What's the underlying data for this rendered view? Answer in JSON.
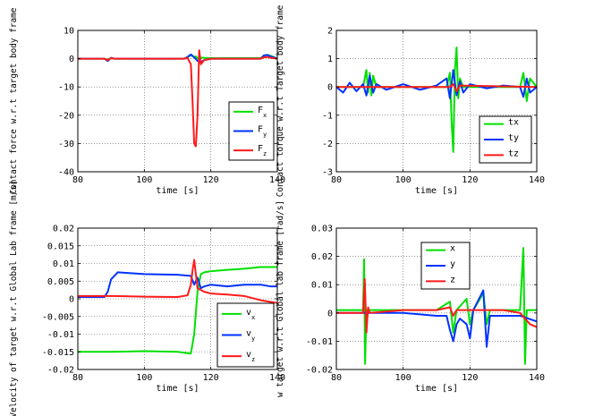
{
  "chart_data": [
    {
      "type": "line",
      "id": "force",
      "title": "",
      "xlabel": "time [s]",
      "ylabel": "Contact force w.r.t target body frame",
      "xlim": [
        80,
        140
      ],
      "ylim": [
        -40,
        10
      ],
      "xticks": [
        80,
        100,
        120,
        140
      ],
      "yticks": [
        -40,
        -30,
        -20,
        -10,
        0,
        10
      ],
      "grid": true,
      "legend_position": "lower-right",
      "series": [
        {
          "name": "F",
          "sub": "x",
          "color": "#00e000",
          "x": [
            80,
            88,
            89,
            90,
            91,
            112,
            113,
            114,
            115,
            115.5,
            116,
            116.5,
            117,
            118,
            120,
            135,
            136,
            137,
            138,
            140
          ],
          "y": [
            0,
            0,
            -0.3,
            0.2,
            0,
            0,
            0.5,
            1.2,
            0.6,
            0.8,
            0.2,
            -0.3,
            0.4,
            0.3,
            0.2,
            0.2,
            1.0,
            1.4,
            1.0,
            0.1
          ]
        },
        {
          "name": "F",
          "sub": "y",
          "color": "#0033ff",
          "x": [
            80,
            88,
            89,
            90,
            91,
            112,
            113,
            114,
            115,
            116,
            117,
            118,
            120,
            135,
            136,
            137,
            138,
            140
          ],
          "y": [
            0,
            0,
            -0.8,
            0.3,
            0,
            0,
            0.6,
            1.5,
            0.5,
            -0.8,
            -1.2,
            -0.5,
            0,
            0,
            1.2,
            1.3,
            0.8,
            0
          ]
        },
        {
          "name": "F",
          "sub": "z",
          "color": "#ff1a1a",
          "x": [
            80,
            88,
            89,
            90,
            91,
            112,
            113,
            114,
            114.5,
            115,
            115.5,
            116,
            116.5,
            117,
            118,
            120,
            135,
            136,
            137,
            138,
            140
          ],
          "y": [
            0,
            0,
            -0.5,
            0.2,
            0,
            0,
            0.3,
            -2,
            -15,
            -30,
            -31,
            -20,
            3,
            -2,
            -0.5,
            0,
            0,
            0.5,
            0.6,
            0.3,
            0
          ]
        }
      ]
    },
    {
      "type": "line",
      "id": "torque",
      "title": "",
      "xlabel": "time [s]",
      "ylabel": "Contact torque w.r.t Target body frame",
      "xlim": [
        80,
        140
      ],
      "ylim": [
        -3,
        2
      ],
      "xticks": [
        80,
        100,
        120,
        140
      ],
      "yticks": [
        -3,
        -2,
        -1,
        0,
        1,
        2
      ],
      "grid": true,
      "legend_position": "lower-right",
      "series": [
        {
          "name": "tx",
          "sub": "",
          "color": "#00e000",
          "x": [
            80,
            88,
            89,
            89.5,
            90,
            90.5,
            91,
            92,
            113,
            114,
            114.5,
            115,
            115.5,
            116,
            116.5,
            117,
            118,
            120,
            135,
            136,
            137,
            138,
            140
          ],
          "y": [
            0,
            0,
            0.6,
            -0.2,
            0.5,
            -0.3,
            0.4,
            0,
            0,
            0.5,
            -1.2,
            -2.3,
            0.6,
            1.4,
            -0.4,
            0.3,
            0,
            0,
            0,
            0.5,
            -0.5,
            0.3,
            0
          ]
        },
        {
          "name": "ty",
          "sub": "",
          "color": "#0033ff",
          "x": [
            80,
            82,
            84,
            86,
            88,
            89,
            90,
            91,
            92,
            95,
            100,
            105,
            110,
            113,
            114,
            115,
            116,
            117,
            118,
            120,
            125,
            130,
            135,
            136,
            137,
            138,
            140
          ],
          "y": [
            0,
            -0.2,
            0.15,
            -0.15,
            0.1,
            -0.3,
            0.4,
            -0.2,
            0.1,
            -0.1,
            0.1,
            -0.1,
            0.05,
            0.3,
            -0.4,
            0.6,
            -0.3,
            0.2,
            -0.2,
            0.1,
            -0.05,
            0.05,
            0,
            -0.35,
            0.3,
            -0.2,
            0
          ]
        },
        {
          "name": "tz",
          "sub": "",
          "color": "#ff1a1a",
          "x": [
            80,
            114,
            115,
            116,
            117,
            140
          ],
          "y": [
            0,
            0,
            0.1,
            -0.15,
            0.05,
            0
          ]
        }
      ]
    },
    {
      "type": "line",
      "id": "velocity",
      "title": "",
      "xlabel": "time [s]",
      "ylabel": "Velocity of target w.r.t Global Lab frame [m/s]",
      "xlim": [
        80,
        140
      ],
      "ylim": [
        -0.02,
        0.02
      ],
      "xticks": [
        80,
        100,
        120,
        140
      ],
      "yticks": [
        -0.02,
        -0.015,
        -0.01,
        -0.005,
        0,
        0.005,
        0.01,
        0.015,
        0.02
      ],
      "grid": true,
      "legend_position": "lower-right",
      "series": [
        {
          "name": "v",
          "sub": "x",
          "color": "#00e000",
          "x": [
            80,
            90,
            100,
            110,
            114,
            115,
            116,
            117,
            118,
            120,
            125,
            130,
            135,
            140
          ],
          "y": [
            -0.015,
            -0.015,
            -0.0148,
            -0.015,
            -0.0155,
            -0.01,
            0.002,
            0.007,
            0.0075,
            0.0078,
            0.0082,
            0.0085,
            0.009,
            0.009
          ]
        },
        {
          "name": "v",
          "sub": "y",
          "color": "#0033ff",
          "x": [
            80,
            88,
            89,
            90,
            92,
            100,
            110,
            114,
            115,
            116,
            117,
            118,
            120,
            125,
            130,
            135,
            138,
            140
          ],
          "y": [
            0.0005,
            0.0005,
            0.002,
            0.0055,
            0.0075,
            0.007,
            0.0068,
            0.0065,
            0.004,
            0.006,
            0.003,
            0.0035,
            0.004,
            0.0035,
            0.004,
            0.004,
            0.0035,
            0.0035
          ]
        },
        {
          "name": "v",
          "sub": "z",
          "color": "#ff1a1a",
          "x": [
            80,
            90,
            100,
            110,
            113,
            114,
            114.5,
            115,
            115.5,
            116,
            117,
            118,
            120,
            125,
            130,
            135,
            140
          ],
          "y": [
            0.0008,
            0.0008,
            0.0006,
            0.0005,
            0.001,
            0.004,
            0.008,
            0.011,
            0.007,
            0.003,
            0.0025,
            0.002,
            0.0015,
            0.0012,
            0.0008,
            -0.0004,
            -0.0012
          ]
        }
      ]
    },
    {
      "type": "line",
      "id": "angular",
      "title": "",
      "xlabel": "time [s]",
      "ylabel": "w target w.r.t Global lab frame [rad/s]",
      "xlim": [
        80,
        140
      ],
      "ylim": [
        -0.02,
        0.03
      ],
      "xticks": [
        80,
        100,
        120,
        140
      ],
      "yticks": [
        -0.02,
        -0.01,
        0,
        0.01,
        0.02,
        0.03
      ],
      "grid": true,
      "legend_position": "top-center",
      "series": [
        {
          "name": "x",
          "sub": "",
          "color": "#00e000",
          "x": [
            80,
            88,
            88.3,
            88.6,
            89,
            100,
            110,
            114,
            115,
            116,
            119,
            120,
            121,
            124,
            125,
            126,
            135,
            136,
            136.5,
            137,
            140
          ],
          "y": [
            0.001,
            0.001,
            0.019,
            -0.018,
            0.001,
            0.001,
            0.001,
            0.004,
            -0.007,
            0.001,
            0.005,
            -0.004,
            0.001,
            0.007,
            -0.004,
            0.001,
            0.001,
            0.023,
            -0.018,
            0.001,
            0.001
          ]
        },
        {
          "name": "y",
          "sub": "",
          "color": "#0033ff",
          "x": [
            80,
            100,
            110,
            113,
            114,
            115,
            116,
            117,
            119,
            120,
            121,
            124,
            125,
            126,
            130,
            135,
            140
          ],
          "y": [
            0,
            0,
            -0.001,
            -0.001,
            -0.006,
            -0.01,
            -0.004,
            -0.002,
            -0.004,
            -0.009,
            0.001,
            0.008,
            -0.012,
            -0.001,
            -0.001,
            -0.001,
            -0.003
          ]
        },
        {
          "name": "z",
          "sub": "",
          "color": "#ff1a1a",
          "x": [
            80,
            88,
            88.5,
            89,
            89.5,
            90,
            100,
            110,
            114,
            115,
            116,
            120,
            130,
            135,
            138,
            140
          ],
          "y": [
            0,
            0,
            0.012,
            -0.007,
            0.002,
            0,
            0.001,
            0.001,
            0.002,
            -0.001,
            0.001,
            0.001,
            0.001,
            0,
            -0.004,
            -0.005
          ]
        }
      ]
    }
  ]
}
